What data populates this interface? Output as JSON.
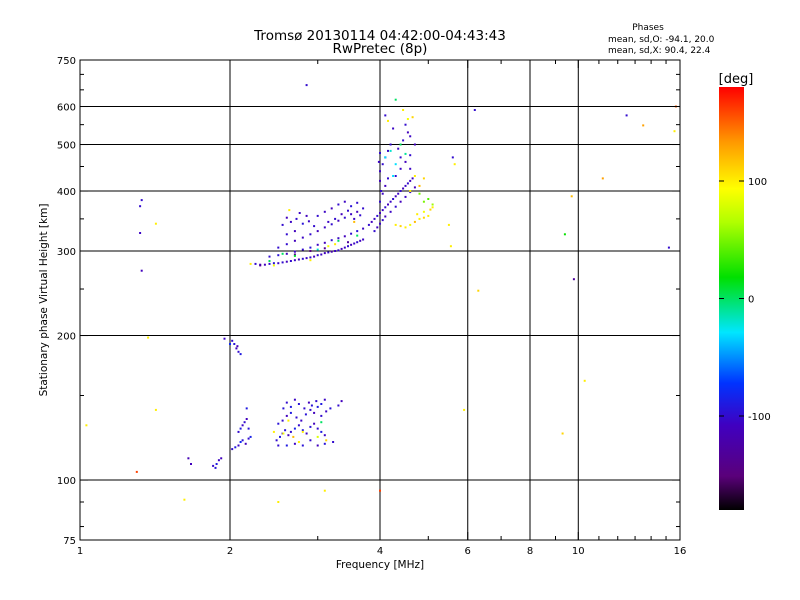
{
  "chart_data": {
    "type": "scatter",
    "title_line1": "Tromsø 20130114 04:42:00-04:43:43",
    "title_line2": "RwPretec (8p)",
    "xlabel": "Frequency [MHz]",
    "ylabel": "Stationary phase Virtual Height [km]",
    "x_scale": "log",
    "y_scale": "log",
    "xlim": [
      1,
      16
    ],
    "ylim": [
      75,
      750
    ],
    "x_ticks": [
      1,
      2,
      4,
      6,
      8,
      10,
      16
    ],
    "x_tick_labels": [
      "1",
      "2",
      "4",
      "6",
      "8",
      "10",
      "16"
    ],
    "x_grid": [
      2,
      4,
      6,
      8,
      10
    ],
    "y_ticks": [
      75,
      100,
      200,
      300,
      400,
      500,
      600,
      750
    ],
    "y_tick_labels": [
      "75",
      "100",
      "200",
      "300",
      "400",
      "500",
      "600",
      "750"
    ],
    "y_grid": [
      100,
      200,
      300,
      400,
      500,
      600
    ],
    "grid": true,
    "phase_box": {
      "title": "Phases",
      "line_o": "mean, sd,O:  -94.1, 20.0",
      "line_x": "mean, sd,X:  90.4, 22.4"
    },
    "colorbar": {
      "label": "[deg]",
      "min": -180,
      "max": 180,
      "ticks": [
        100,
        0,
        -100
      ],
      "tick_labels": [
        "100",
        "0",
        "-100"
      ],
      "colormap": "rainbow (black → purple → blue → cyan → green → yellow → orange → red)"
    },
    "points": [
      [
        1.33,
        383,
        -100
      ],
      [
        1.32,
        372,
        -100
      ],
      [
        1.32,
        327,
        -105
      ],
      [
        1.33,
        273,
        -110
      ],
      [
        1.42,
        342,
        100
      ],
      [
        1.37,
        198,
        100
      ],
      [
        1.42,
        140,
        100
      ],
      [
        1.03,
        130,
        100
      ],
      [
        1.3,
        104,
        160
      ],
      [
        1.65,
        111,
        -115
      ],
      [
        1.67,
        108,
        -110
      ],
      [
        1.62,
        91,
        100
      ],
      [
        1.95,
        197,
        -105
      ],
      [
        2.02,
        195,
        -100
      ],
      [
        2.04,
        192,
        -95
      ],
      [
        2.06,
        188,
        -110
      ],
      [
        2.08,
        185,
        -100
      ],
      [
        2.1,
        183,
        -90
      ],
      [
        2.07,
        190,
        -115
      ],
      [
        2.0,
        192,
        -80
      ],
      [
        1.85,
        107,
        -100
      ],
      [
        1.88,
        108,
        -90
      ],
      [
        1.9,
        110,
        -105
      ],
      [
        1.92,
        111,
        -110
      ],
      [
        1.87,
        106,
        -95
      ],
      [
        2.02,
        116,
        -100
      ],
      [
        2.05,
        117,
        -90
      ],
      [
        2.08,
        118,
        -105
      ],
      [
        2.1,
        120,
        -80
      ],
      [
        2.12,
        121,
        -95
      ],
      [
        2.15,
        119,
        -110
      ],
      [
        2.18,
        122,
        -100
      ],
      [
        2.2,
        123,
        -85
      ],
      [
        2.08,
        126,
        -100
      ],
      [
        2.1,
        128,
        -90
      ],
      [
        2.12,
        130,
        -105
      ],
      [
        2.14,
        132,
        -100
      ],
      [
        2.16,
        134,
        -110
      ],
      [
        2.18,
        128,
        -95
      ],
      [
        2.16,
        141,
        -90
      ],
      [
        2.48,
        121,
        -100
      ],
      [
        2.52,
        123,
        -90
      ],
      [
        2.55,
        125,
        -105
      ],
      [
        2.58,
        127,
        -95
      ],
      [
        2.62,
        124,
        -110
      ],
      [
        2.65,
        126,
        -100
      ],
      [
        2.7,
        128,
        -85
      ],
      [
        2.75,
        130,
        -100
      ],
      [
        2.8,
        127,
        -90
      ],
      [
        2.85,
        125,
        -105
      ],
      [
        2.9,
        129,
        -95
      ],
      [
        2.95,
        131,
        -110
      ],
      [
        3.0,
        128,
        -100
      ],
      [
        3.05,
        126,
        -90
      ],
      [
        3.1,
        124,
        -105
      ],
      [
        2.5,
        131,
        -95
      ],
      [
        2.55,
        133,
        -100
      ],
      [
        2.6,
        136,
        -110
      ],
      [
        2.65,
        138,
        -90
      ],
      [
        2.72,
        135,
        -100
      ],
      [
        2.78,
        133,
        -105
      ],
      [
        2.84,
        137,
        -95
      ],
      [
        2.9,
        140,
        -100
      ],
      [
        2.95,
        138,
        -110
      ],
      [
        3.0,
        142,
        -90
      ],
      [
        3.05,
        136,
        -100
      ],
      [
        3.12,
        139,
        -105
      ],
      [
        3.18,
        141,
        -95
      ],
      [
        2.6,
        145,
        -100
      ],
      [
        2.65,
        142,
        -90
      ],
      [
        2.7,
        147,
        -105
      ],
      [
        2.75,
        144,
        -95
      ],
      [
        2.82,
        141,
        -100
      ],
      [
        2.88,
        145,
        -110
      ],
      [
        2.92,
        143,
        -95
      ],
      [
        2.98,
        146,
        -100
      ],
      [
        3.05,
        144,
        -90
      ],
      [
        3.1,
        147,
        -105
      ],
      [
        2.56,
        141,
        -95
      ],
      [
        2.5,
        118,
        -100
      ],
      [
        2.6,
        118,
        -90
      ],
      [
        2.7,
        119,
        -105
      ],
      [
        2.8,
        118,
        -95
      ],
      [
        2.9,
        121,
        -100
      ],
      [
        3.0,
        118,
        -110
      ],
      [
        3.1,
        119,
        -95
      ],
      [
        3.22,
        120,
        -100
      ],
      [
        2.45,
        126,
        100
      ],
      [
        2.56,
        125,
        90
      ],
      [
        2.68,
        123,
        120
      ],
      [
        2.8,
        126,
        100
      ],
      [
        3.0,
        123,
        80
      ],
      [
        2.75,
        120,
        100
      ],
      [
        3.12,
        121,
        110
      ],
      [
        2.62,
        133,
        100
      ],
      [
        3.05,
        132,
        0
      ],
      [
        3.3,
        143,
        -100
      ],
      [
        3.35,
        146,
        -110
      ],
      [
        2.25,
        282,
        -100
      ],
      [
        2.3,
        281,
        -105
      ],
      [
        2.35,
        281,
        -110
      ],
      [
        2.4,
        282,
        -100
      ],
      [
        2.45,
        283,
        -95
      ],
      [
        2.5,
        283,
        -105
      ],
      [
        2.55,
        284,
        -100
      ],
      [
        2.6,
        285,
        -110
      ],
      [
        2.65,
        286,
        -100
      ],
      [
        2.7,
        287,
        -105
      ],
      [
        2.75,
        288,
        -110
      ],
      [
        2.8,
        289,
        -100
      ],
      [
        2.85,
        290,
        -105
      ],
      [
        2.9,
        291,
        -100
      ],
      [
        2.95,
        292,
        -110
      ],
      [
        3.0,
        294,
        -100
      ],
      [
        3.05,
        295,
        -105
      ],
      [
        3.1,
        297,
        -110
      ],
      [
        3.15,
        298,
        -100
      ],
      [
        3.2,
        299,
        -120
      ],
      [
        3.25,
        300,
        -105
      ],
      [
        3.3,
        301,
        -100
      ],
      [
        3.35,
        303,
        -110
      ],
      [
        3.4,
        305,
        -105
      ],
      [
        3.45,
        307,
        -100
      ],
      [
        3.5,
        309,
        -110
      ],
      [
        3.55,
        311,
        -105
      ],
      [
        3.6,
        313,
        -100
      ],
      [
        3.65,
        315,
        -110
      ],
      [
        3.7,
        317,
        -105
      ],
      [
        2.4,
        292,
        -100
      ],
      [
        2.5,
        294,
        -95
      ],
      [
        2.6,
        296,
        -110
      ],
      [
        2.7,
        299,
        -105
      ],
      [
        2.8,
        302,
        -100
      ],
      [
        2.9,
        305,
        -95
      ],
      [
        3.0,
        309,
        -105
      ],
      [
        3.1,
        312,
        -110
      ],
      [
        3.2,
        316,
        -100
      ],
      [
        3.3,
        319,
        -105
      ],
      [
        3.4,
        322,
        -110
      ],
      [
        3.5,
        326,
        -100
      ],
      [
        3.6,
        330,
        -95
      ],
      [
        3.7,
        334,
        -105
      ],
      [
        2.6,
        310,
        -100
      ],
      [
        2.7,
        315,
        -110
      ],
      [
        2.8,
        320,
        -105
      ],
      [
        2.9,
        325,
        -100
      ],
      [
        3.0,
        330,
        -110
      ],
      [
        3.1,
        336,
        -105
      ],
      [
        3.2,
        341,
        -100
      ],
      [
        3.3,
        347,
        -110
      ],
      [
        3.4,
        352,
        -100
      ],
      [
        3.5,
        358,
        -105
      ],
      [
        3.6,
        362,
        -110
      ],
      [
        3.7,
        368,
        -100
      ],
      [
        2.55,
        340,
        -100
      ],
      [
        2.6,
        352,
        -110
      ],
      [
        2.65,
        345,
        -105
      ],
      [
        2.72,
        350,
        -100
      ],
      [
        2.8,
        342,
        -95
      ],
      [
        2.88,
        346,
        -105
      ],
      [
        2.95,
        338,
        -100
      ],
      [
        2.7,
        330,
        -110
      ],
      [
        2.6,
        325,
        -100
      ],
      [
        2.76,
        360,
        -105
      ],
      [
        2.85,
        355,
        -110
      ],
      [
        2.63,
        365,
        100
      ],
      [
        2.5,
        305,
        -100
      ],
      [
        3.0,
        355,
        -100
      ],
      [
        3.1,
        362,
        -105
      ],
      [
        3.2,
        368,
        -110
      ],
      [
        3.3,
        375,
        -100
      ],
      [
        3.4,
        380,
        -105
      ],
      [
        3.5,
        372,
        -95
      ],
      [
        3.6,
        378,
        -100
      ],
      [
        3.15,
        345,
        -105
      ],
      [
        3.25,
        350,
        -100
      ],
      [
        3.35,
        358,
        -110
      ],
      [
        3.45,
        364,
        -100
      ],
      [
        3.55,
        350,
        -105
      ],
      [
        3.65,
        356,
        -100
      ],
      [
        2.3,
        280,
        -130
      ],
      [
        2.7,
        295,
        -140
      ],
      [
        3.1,
        304,
        -140
      ],
      [
        3.45,
        313,
        -130
      ],
      [
        2.9,
        300,
        -145
      ],
      [
        2.4,
        286,
        0
      ],
      [
        2.7,
        293,
        10
      ],
      [
        3.0,
        302,
        -20
      ],
      [
        3.3,
        315,
        0
      ],
      [
        3.6,
        323,
        0
      ],
      [
        2.55,
        296,
        0
      ],
      [
        2.2,
        282,
        100
      ],
      [
        2.45,
        280,
        90
      ],
      [
        2.9,
        287,
        100
      ],
      [
        3.25,
        310,
        100
      ],
      [
        3.55,
        345,
        120
      ],
      [
        3.15,
        307,
        90
      ],
      [
        3.8,
        340,
        -100
      ],
      [
        3.85,
        345,
        -110
      ],
      [
        3.9,
        350,
        -105
      ],
      [
        3.95,
        355,
        -100
      ],
      [
        4.0,
        360,
        -110
      ],
      [
        4.05,
        365,
        -105
      ],
      [
        4.1,
        370,
        -100
      ],
      [
        4.15,
        375,
        -110
      ],
      [
        4.2,
        380,
        -105
      ],
      [
        4.25,
        385,
        -100
      ],
      [
        4.3,
        390,
        -110
      ],
      [
        4.35,
        395,
        -105
      ],
      [
        4.4,
        400,
        -100
      ],
      [
        4.45,
        405,
        -110
      ],
      [
        4.5,
        410,
        -105
      ],
      [
        4.55,
        415,
        -100
      ],
      [
        4.6,
        420,
        -110
      ],
      [
        4.65,
        425,
        -105
      ],
      [
        3.9,
        330,
        -100
      ],
      [
        3.95,
        336,
        -110
      ],
      [
        4.0,
        342,
        -105
      ],
      [
        4.05,
        348,
        -100
      ],
      [
        4.1,
        354,
        -110
      ],
      [
        4.2,
        362,
        -105
      ],
      [
        4.3,
        371,
        -100
      ],
      [
        4.4,
        380,
        -110
      ],
      [
        4.5,
        389,
        -105
      ],
      [
        4.6,
        398,
        -100
      ],
      [
        4.7,
        407,
        -110
      ],
      [
        4.0,
        380,
        -100
      ],
      [
        4.05,
        395,
        -105
      ],
      [
        4.1,
        410,
        -110
      ],
      [
        4.15,
        425,
        -100
      ],
      [
        4.0,
        440,
        -105
      ],
      [
        4.05,
        455,
        -100
      ],
      [
        4.1,
        470,
        -110
      ],
      [
        4.15,
        485,
        -105
      ],
      [
        4.2,
        500,
        -100
      ],
      [
        4.0,
        420,
        -110
      ],
      [
        4.02,
        400,
        -100
      ],
      [
        3.98,
        460,
        -105
      ],
      [
        4.0,
        480,
        -100
      ],
      [
        4.3,
        430,
        -100
      ],
      [
        4.4,
        445,
        -105
      ],
      [
        4.5,
        460,
        -110
      ],
      [
        4.6,
        475,
        -100
      ],
      [
        4.35,
        490,
        -105
      ],
      [
        4.45,
        510,
        -100
      ],
      [
        4.55,
        530,
        -110
      ],
      [
        4.25,
        540,
        -105
      ],
      [
        4.5,
        550,
        -100
      ],
      [
        4.6,
        520,
        -105
      ],
      [
        4.7,
        500,
        -110
      ],
      [
        4.4,
        470,
        -100
      ],
      [
        4.6,
        445,
        -105
      ],
      [
        4.3,
        620,
        0
      ],
      [
        4.1,
        575,
        -100
      ],
      [
        4.15,
        560,
        100
      ],
      [
        4.45,
        590,
        100
      ],
      [
        4.55,
        565,
        90
      ],
      [
        4.65,
        570,
        110
      ],
      [
        4.3,
        340,
        100
      ],
      [
        4.4,
        338,
        110
      ],
      [
        4.5,
        336,
        100
      ],
      [
        4.6,
        340,
        90
      ],
      [
        4.7,
        345,
        120
      ],
      [
        4.8,
        350,
        100
      ],
      [
        4.9,
        352,
        110
      ],
      [
        5.0,
        355,
        100
      ],
      [
        4.75,
        358,
        100
      ],
      [
        4.9,
        362,
        90
      ],
      [
        5.05,
        366,
        110
      ],
      [
        5.1,
        370,
        100
      ],
      [
        4.9,
        380,
        50
      ],
      [
        5.0,
        385,
        40
      ],
      [
        5.1,
        375,
        60
      ],
      [
        4.8,
        395,
        50
      ],
      [
        4.1,
        470,
        -30
      ],
      [
        4.2,
        485,
        -20
      ],
      [
        4.3,
        455,
        -30
      ],
      [
        4.5,
        478,
        -10
      ],
      [
        4.4,
        500,
        0
      ],
      [
        4.25,
        430,
        -30
      ],
      [
        4.6,
        400,
        100
      ],
      [
        4.8,
        410,
        120
      ],
      [
        4.7,
        430,
        100
      ],
      [
        4.9,
        425,
        110
      ],
      [
        5.5,
        340,
        100
      ],
      [
        5.6,
        470,
        -100
      ],
      [
        5.65,
        455,
        100
      ],
      [
        2.85,
        665,
        -100
      ],
      [
        6.2,
        590,
        -100
      ],
      [
        12.5,
        575,
        -100
      ],
      [
        13.5,
        548,
        130
      ],
      [
        15.7,
        600,
        150
      ],
      [
        15.6,
        533,
        100
      ],
      [
        11.2,
        425,
        130
      ],
      [
        9.7,
        390,
        120
      ],
      [
        9.4,
        325,
        20
      ],
      [
        9.8,
        262,
        -130
      ],
      [
        15.2,
        305,
        -100
      ],
      [
        6.3,
        248,
        110
      ],
      [
        5.55,
        307,
        100
      ],
      [
        5.9,
        140,
        100
      ],
      [
        10.3,
        161,
        100
      ],
      [
        9.3,
        125,
        110
      ],
      [
        4.0,
        95,
        160
      ],
      [
        2.5,
        90,
        100
      ],
      [
        3.1,
        95,
        100
      ]
    ]
  }
}
